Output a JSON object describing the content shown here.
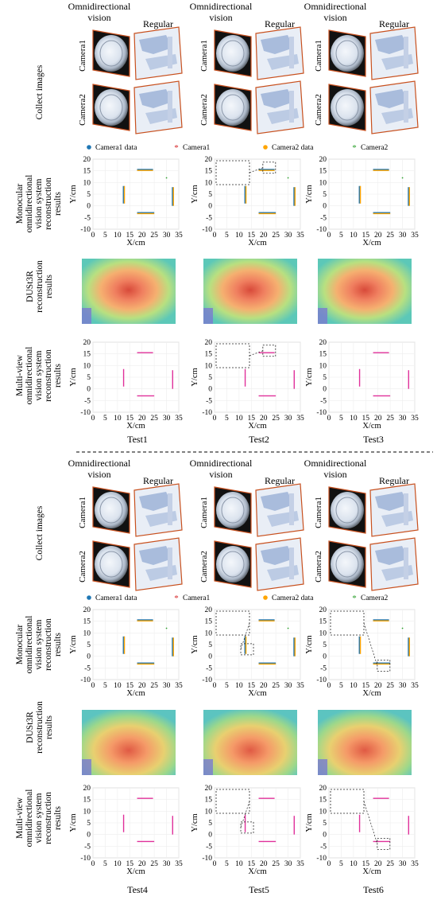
{
  "labels": {
    "omni": "Omnidirectional\nvision",
    "regular": "Regular",
    "camera1": "Camera1",
    "camera2": "Camera2",
    "collect": "Collect images",
    "mono": "Monocular\nomnidirectional\nvision system\nreconstruction\nresults",
    "dust": "DUSt3R\nreconstruction\nresults",
    "multi": "Multi-view\nomnidirectional\nvision system\nreconstruction\nresults"
  },
  "legend": [
    "Camera1 data",
    "Camera1",
    "Camera2 data",
    "Camera2"
  ],
  "colors": {
    "cam1": "#1f77b4",
    "cam1star": "#d62728",
    "cam2": "#ffa500",
    "cam2star": "#2ca02c",
    "multi": "#e0309a",
    "frame": "#c8501e"
  },
  "tests": [
    {
      "name": "Test1"
    },
    {
      "name": "Test2"
    },
    {
      "name": "Test3"
    },
    {
      "name": "Test4"
    },
    {
      "name": "Test5"
    },
    {
      "name": "Test6"
    }
  ],
  "chart_data": {
    "type": "scatter",
    "xlabel": "X/cm",
    "ylabel": "Y/cm",
    "xlim": [
      0,
      35
    ],
    "ylim": [
      -10,
      20
    ],
    "xticks": [
      0,
      5,
      10,
      15,
      20,
      25,
      30,
      35
    ],
    "yticks": [
      -10,
      -5,
      0,
      5,
      10,
      15,
      20
    ],
    "grid": true
  }
}
